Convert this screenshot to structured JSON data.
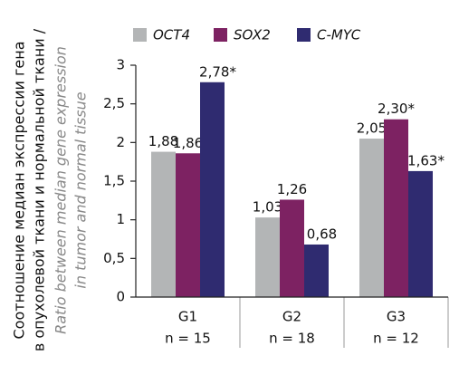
{
  "chart_data": {
    "type": "bar",
    "y_label": [
      "Соотношение медиан экспрессии гена",
      "в опухолевой ткани и нормальной ткани /",
      "Ratio between median gene expression",
      "in tumor and normal tissue"
    ],
    "categories": [
      "G1",
      "G2",
      "G3"
    ],
    "category_notes": [
      "n = 15",
      "n = 18",
      "n = 12"
    ],
    "series": [
      {
        "name": "OCT4",
        "color": "#b3b5b6",
        "values": [
          1.88,
          1.03,
          2.05
        ],
        "value_labels": [
          "1,88",
          "1,03",
          "2,05"
        ]
      },
      {
        "name": "SOX2",
        "color": "#7d2262",
        "values": [
          1.86,
          1.26,
          2.3
        ],
        "value_labels": [
          "1,86",
          "1,26",
          "2,30*"
        ]
      },
      {
        "name": "C-MYC",
        "color": "#2f2b70",
        "values": [
          2.78,
          0.68,
          1.63
        ],
        "value_labels": [
          "2,78*",
          "0,68",
          "1,63*"
        ]
      }
    ],
    "ylim": [
      0,
      3
    ],
    "yticks": [
      0,
      {
        "value": 0.5,
        "label": "0,5"
      },
      1,
      {
        "value": 1.5,
        "label": "1,5"
      },
      2,
      {
        "value": 2.5,
        "label": "2,5"
      },
      3
    ],
    "grid": false
  }
}
